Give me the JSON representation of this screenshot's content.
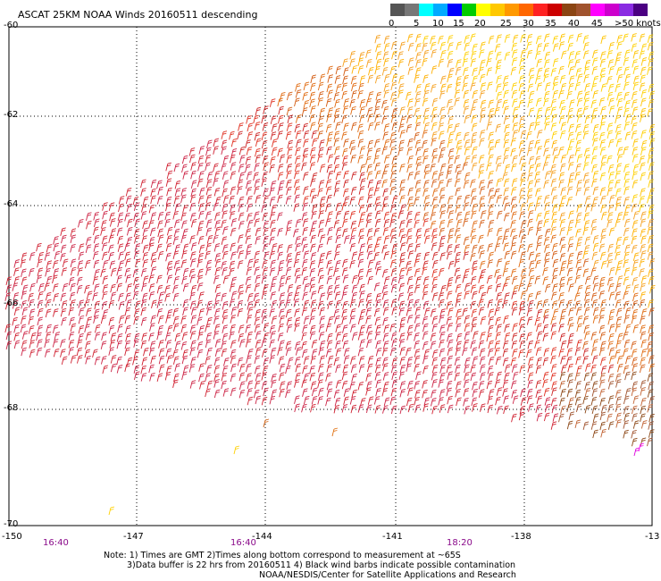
{
  "title": "ASCAT 25KM NOAA Winds 20160511 descending",
  "legend": {
    "colors": [
      "#555555",
      "#777777",
      "#00ffff",
      "#00aaff",
      "#0000ff",
      "#00cc00",
      "#ffff00",
      "#ffc800",
      "#ff9900",
      "#ff6600",
      "#ff2222",
      "#cc0000",
      "#8b4513",
      "#a0522d",
      "#ff00ff",
      "#cc00cc",
      "#8a2be2",
      "#4b0082"
    ],
    "labels": [
      "0",
      "5",
      "10",
      "15",
      "20",
      "25",
      "30",
      "35",
      "40",
      "45",
      ">50 knots"
    ]
  },
  "latitudes": [
    "-60",
    "-62",
    "-64",
    "-66",
    "-68",
    "-70"
  ],
  "longitudes": [
    "-150",
    "-147",
    "-144",
    "-141",
    "-138",
    "-13"
  ],
  "times": [
    "16:40",
    "16:40",
    "18:20"
  ],
  "notes": [
    "Note: 1) Times are GMT 2)Times along bottom correspond to measurement at ~65S",
    "3)Data buffer is 22 hrs from 20160511 4) Black wind barbs indicate possible contamination",
    "NOAA/NESDIS/Center for Satellite Applications and Research"
  ]
}
